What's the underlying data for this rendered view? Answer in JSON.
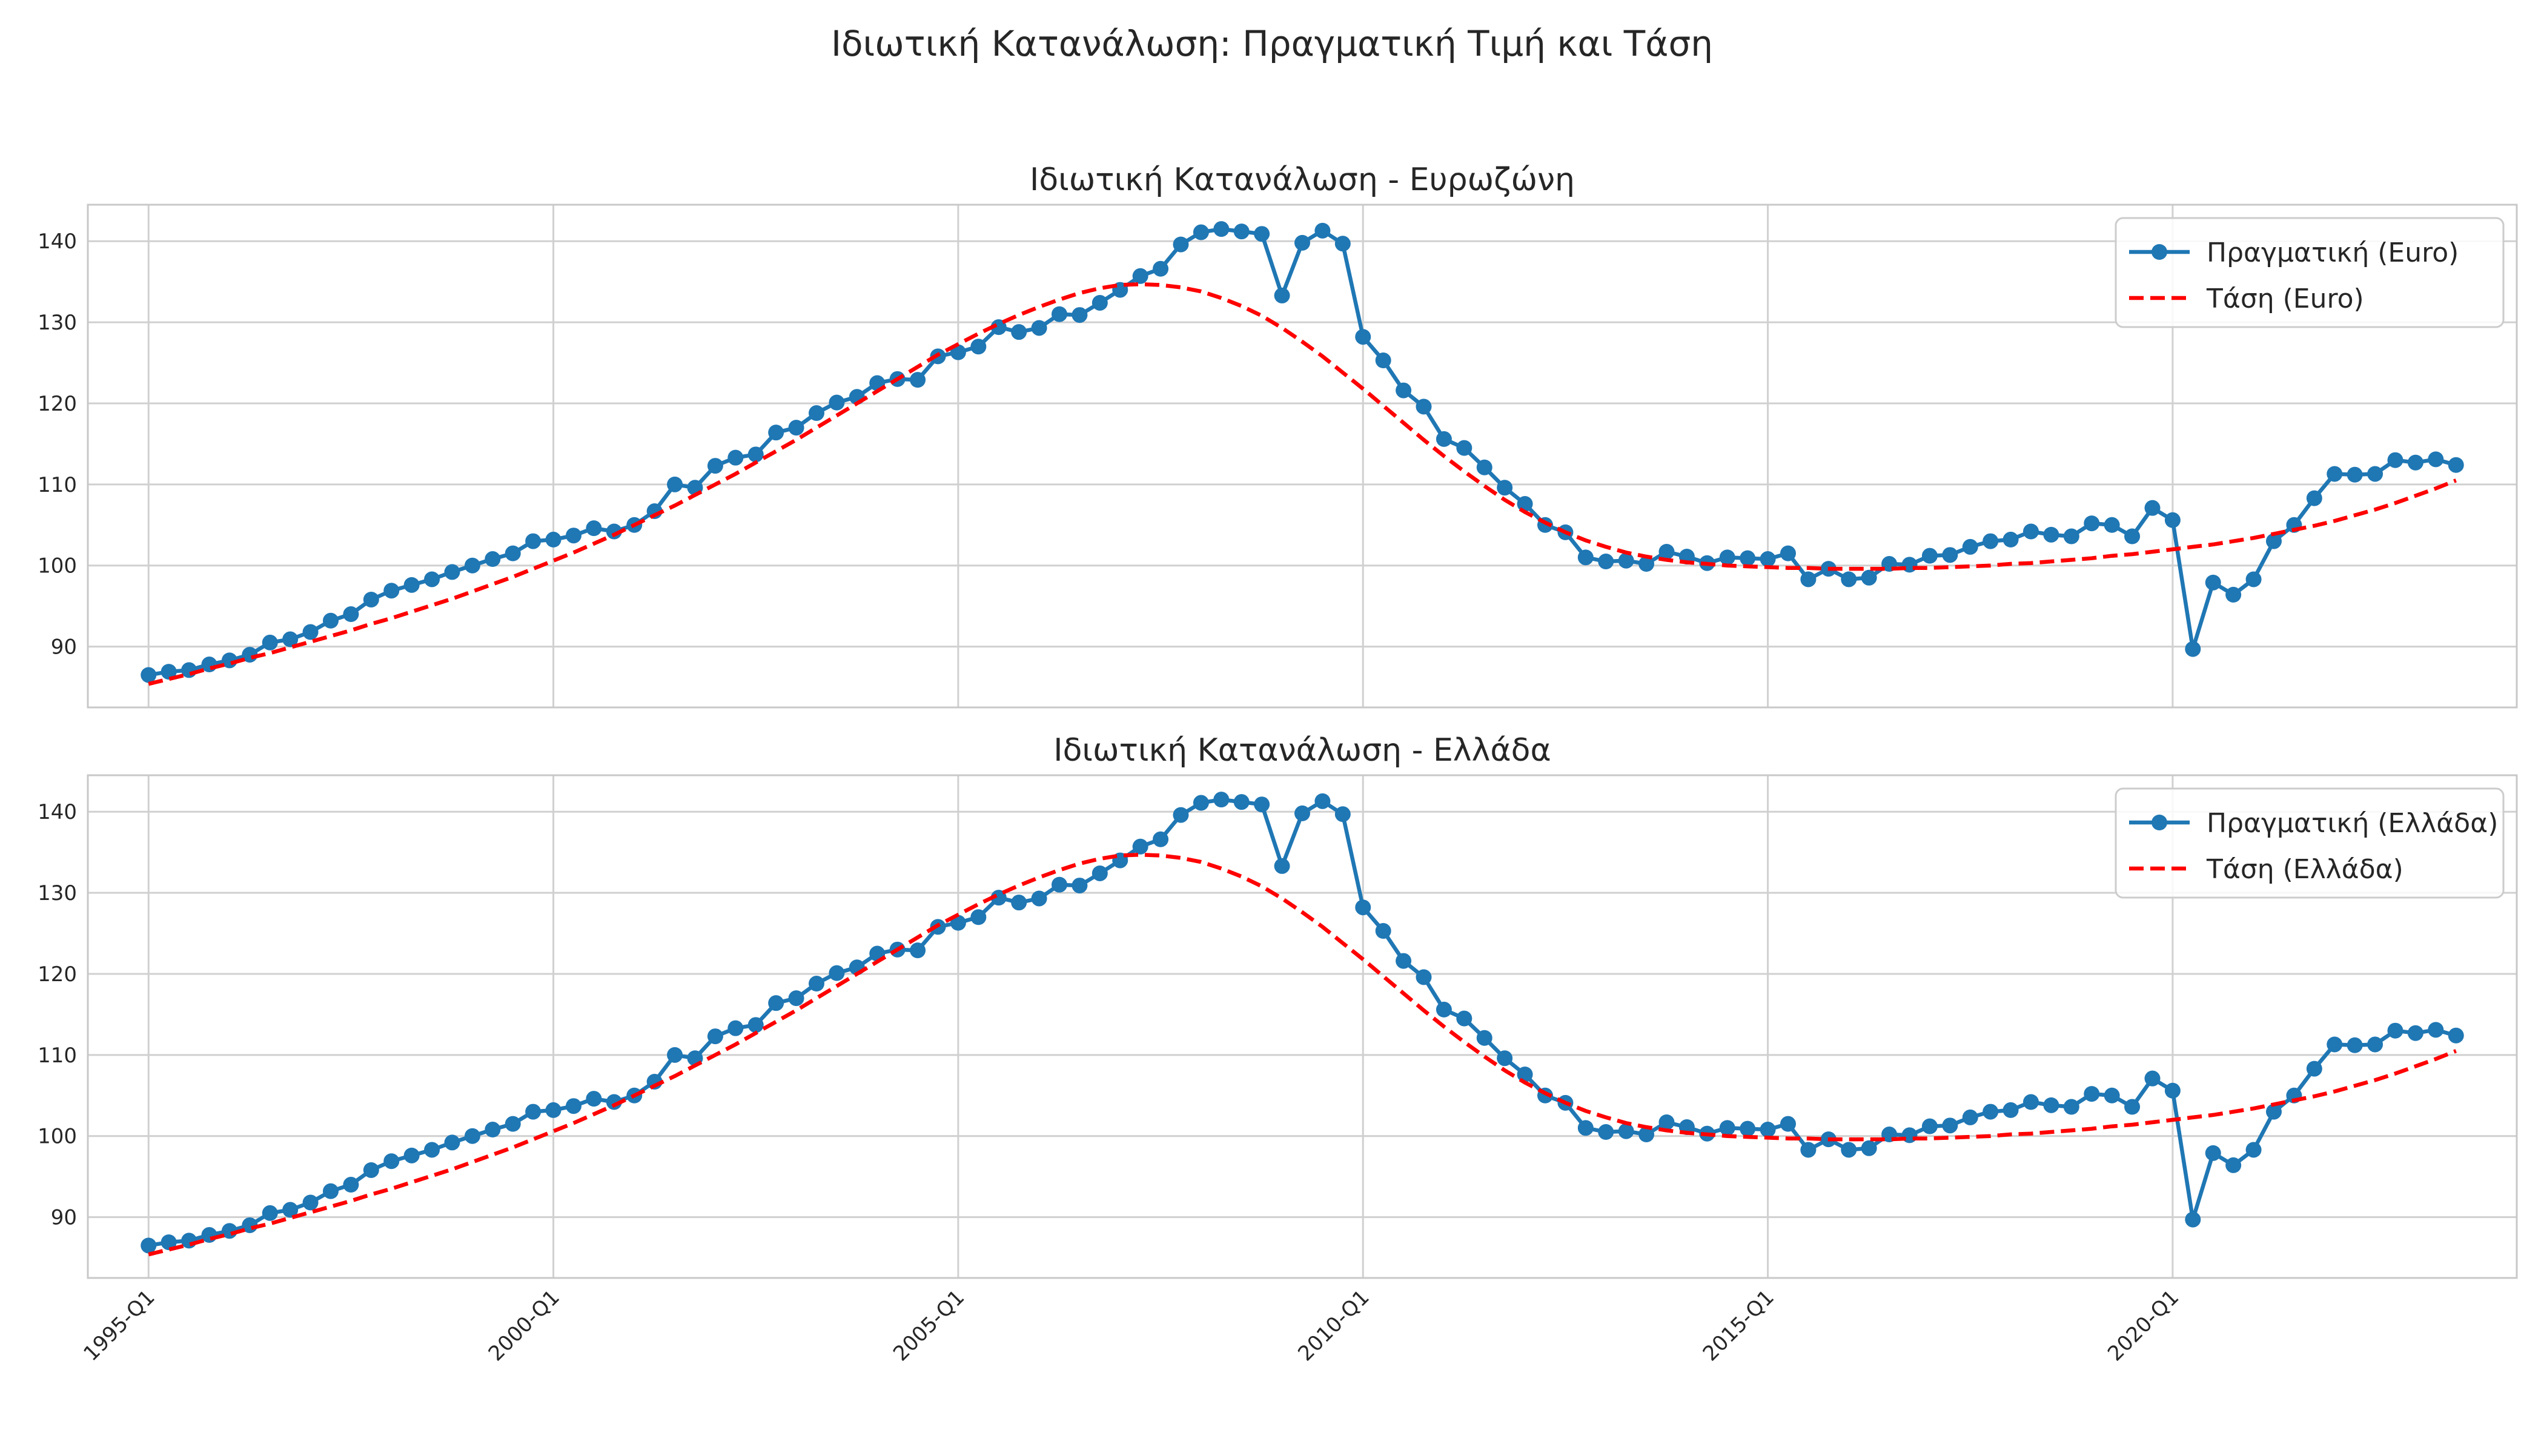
{
  "figure": {
    "suptitle": "Ιδιωτική Κατανάλωση: Πραγματική Τιμή και Τάση"
  },
  "chart_data": [
    {
      "type": "line",
      "title": "Ιδιωτική Κατανάλωση - Ευρωζώνη",
      "xlabel": "",
      "ylabel": "",
      "x_start": "1995-Q1",
      "x_end": "2023-Q3",
      "x_ticks": [
        "1995-Q1",
        "2000-Q1",
        "2005-Q1",
        "2010-Q1",
        "2015-Q1",
        "2020-Q1"
      ],
      "y_ticks": [
        90,
        100,
        110,
        120,
        130,
        140
      ],
      "ylim": [
        82.5,
        144.5
      ],
      "grid": true,
      "legend_position": "top-right",
      "series": [
        {
          "name": "Πραγματική (Euro)",
          "style": "solid-markers",
          "color": "#1f77b4",
          "values": [
            86.5,
            86.9,
            87.1,
            87.8,
            88.3,
            89.0,
            90.5,
            90.9,
            91.8,
            93.2,
            94.0,
            95.8,
            96.9,
            97.6,
            98.3,
            99.2,
            100.0,
            100.8,
            101.5,
            103.0,
            103.2,
            103.7,
            104.6,
            104.2,
            105.0,
            106.7,
            110.0,
            109.6,
            112.3,
            113.3,
            113.7,
            116.4,
            117.0,
            118.8,
            120.1,
            120.8,
            122.5,
            123.0,
            122.9,
            125.8,
            126.3,
            127.0,
            129.4,
            128.8,
            129.3,
            131.0,
            130.9,
            132.4,
            134.0,
            135.7,
            136.6,
            139.6,
            141.1,
            141.5,
            141.2,
            140.9,
            133.3,
            139.8,
            141.3,
            139.7,
            128.2,
            125.3,
            121.6,
            119.6,
            115.6,
            114.5,
            112.1,
            109.6,
            107.6,
            105.0,
            104.1,
            101.0,
            100.5,
            100.6,
            100.2,
            101.7,
            101.1,
            100.3,
            101.0,
            100.9,
            100.8,
            101.5,
            98.3,
            99.6,
            98.3,
            98.5,
            100.2,
            100.1,
            101.2,
            101.3,
            102.3,
            103.0,
            103.2,
            104.2,
            103.8,
            103.6,
            105.2,
            105.0,
            103.6,
            107.1,
            105.6,
            89.7,
            97.9,
            96.4,
            98.3,
            103.0,
            105.0,
            108.3,
            111.3,
            111.2,
            111.3,
            113.0,
            112.7,
            113.1,
            112.4
          ]
        },
        {
          "name": "Τάση (Euro)",
          "style": "dashed",
          "color": "#ff0000",
          "values": [
            85.4,
            86.0,
            86.6,
            87.3,
            87.9,
            88.6,
            89.2,
            89.9,
            90.6,
            91.3,
            92.0,
            92.8,
            93.5,
            94.3,
            95.1,
            95.9,
            96.8,
            97.7,
            98.6,
            99.6,
            100.6,
            101.6,
            102.7,
            103.8,
            105.0,
            106.2,
            107.4,
            108.7,
            110.0,
            111.3,
            112.7,
            114.1,
            115.5,
            117.0,
            118.5,
            120.0,
            121.5,
            123.0,
            124.5,
            126.0,
            127.3,
            128.6,
            129.8,
            130.9,
            131.9,
            132.8,
            133.6,
            134.2,
            134.6,
            134.7,
            134.6,
            134.3,
            133.8,
            133.0,
            132.0,
            130.8,
            129.3,
            127.6,
            125.8,
            123.8,
            121.8,
            119.7,
            117.6,
            115.5,
            113.5,
            111.6,
            109.8,
            108.1,
            106.6,
            105.3,
            104.1,
            103.1,
            102.3,
            101.6,
            101.1,
            100.7,
            100.4,
            100.2,
            100.0,
            99.9,
            99.8,
            99.7,
            99.7,
            99.6,
            99.6,
            99.6,
            99.6,
            99.7,
            99.7,
            99.8,
            99.9,
            100.0,
            100.2,
            100.3,
            100.5,
            100.7,
            100.9,
            101.2,
            101.4,
            101.7,
            102.0,
            102.3,
            102.6,
            103.0,
            103.4,
            103.9,
            104.4,
            104.9,
            105.5,
            106.2,
            106.9,
            107.7,
            108.6,
            109.5,
            110.5
          ]
        }
      ]
    },
    {
      "type": "line",
      "title": "Ιδιωτική Κατανάλωση - Ελλάδα",
      "xlabel": "",
      "ylabel": "",
      "x_start": "1995-Q1",
      "x_end": "2023-Q3",
      "x_ticks": [
        "1995-Q1",
        "2000-Q1",
        "2005-Q1",
        "2010-Q1",
        "2015-Q1",
        "2020-Q1"
      ],
      "y_ticks": [
        90,
        100,
        110,
        120,
        130,
        140
      ],
      "ylim": [
        82.5,
        144.5
      ],
      "grid": true,
      "legend_position": "top-right",
      "series": [
        {
          "name": "Πραγματική (Ελλάδα)",
          "style": "solid-markers",
          "color": "#1f77b4",
          "values": [
            86.5,
            86.9,
            87.1,
            87.8,
            88.3,
            89.0,
            90.5,
            90.9,
            91.8,
            93.2,
            94.0,
            95.8,
            96.9,
            97.6,
            98.3,
            99.2,
            100.0,
            100.8,
            101.5,
            103.0,
            103.2,
            103.7,
            104.6,
            104.2,
            105.0,
            106.7,
            110.0,
            109.6,
            112.3,
            113.3,
            113.7,
            116.4,
            117.0,
            118.8,
            120.1,
            120.8,
            122.5,
            123.0,
            122.9,
            125.8,
            126.3,
            127.0,
            129.4,
            128.8,
            129.3,
            131.0,
            130.9,
            132.4,
            134.0,
            135.7,
            136.6,
            139.6,
            141.1,
            141.5,
            141.2,
            140.9,
            133.3,
            139.8,
            141.3,
            139.7,
            128.2,
            125.3,
            121.6,
            119.6,
            115.6,
            114.5,
            112.1,
            109.6,
            107.6,
            105.0,
            104.1,
            101.0,
            100.5,
            100.6,
            100.2,
            101.7,
            101.1,
            100.3,
            101.0,
            100.9,
            100.8,
            101.5,
            98.3,
            99.6,
            98.3,
            98.5,
            100.2,
            100.1,
            101.2,
            101.3,
            102.3,
            103.0,
            103.2,
            104.2,
            103.8,
            103.6,
            105.2,
            105.0,
            103.6,
            107.1,
            105.6,
            89.7,
            97.9,
            96.4,
            98.3,
            103.0,
            105.0,
            108.3,
            111.3,
            111.2,
            111.3,
            113.0,
            112.7,
            113.1,
            112.4
          ]
        },
        {
          "name": "Τάση (Ελλάδα)",
          "style": "dashed",
          "color": "#ff0000",
          "values": [
            85.4,
            86.0,
            86.6,
            87.3,
            87.9,
            88.6,
            89.2,
            89.9,
            90.6,
            91.3,
            92.0,
            92.8,
            93.5,
            94.3,
            95.1,
            95.9,
            96.8,
            97.7,
            98.6,
            99.6,
            100.6,
            101.6,
            102.7,
            103.8,
            105.0,
            106.2,
            107.4,
            108.7,
            110.0,
            111.3,
            112.7,
            114.1,
            115.5,
            117.0,
            118.5,
            120.0,
            121.5,
            123.0,
            124.5,
            126.0,
            127.3,
            128.6,
            129.8,
            130.9,
            131.9,
            132.8,
            133.6,
            134.2,
            134.6,
            134.7,
            134.6,
            134.3,
            133.8,
            133.0,
            132.0,
            130.8,
            129.3,
            127.6,
            125.8,
            123.8,
            121.8,
            119.7,
            117.6,
            115.5,
            113.5,
            111.6,
            109.8,
            108.1,
            106.6,
            105.3,
            104.1,
            103.1,
            102.3,
            101.6,
            101.1,
            100.7,
            100.4,
            100.2,
            100.0,
            99.9,
            99.8,
            99.7,
            99.7,
            99.6,
            99.6,
            99.6,
            99.6,
            99.7,
            99.7,
            99.8,
            99.9,
            100.0,
            100.2,
            100.3,
            100.5,
            100.7,
            100.9,
            101.2,
            101.4,
            101.7,
            102.0,
            102.3,
            102.6,
            103.0,
            103.4,
            103.9,
            104.4,
            104.9,
            105.5,
            106.2,
            106.9,
            107.7,
            108.6,
            109.5,
            110.5
          ]
        }
      ]
    }
  ]
}
